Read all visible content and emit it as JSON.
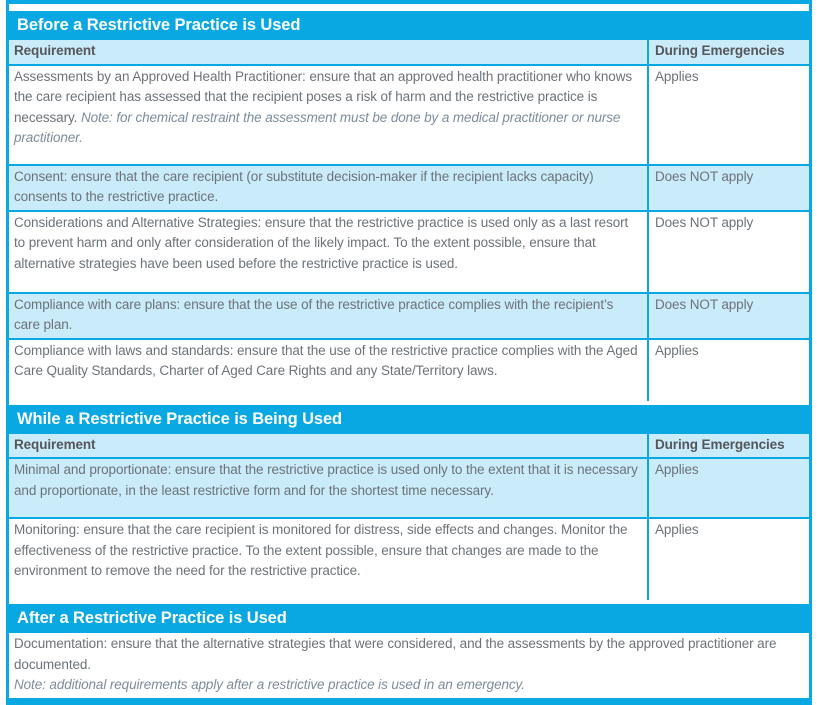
{
  "colors": {
    "accent": "#0AA8E2",
    "row_alt": "#CAEBFA",
    "text": "#6C7378",
    "text_strong": "#55565A",
    "note": "#7D8C9B",
    "header_text": "#FFFFFF"
  },
  "sections": [
    {
      "title": "Before a Restrictive Practice is Used",
      "columns": [
        "Requirement",
        "During Emergencies"
      ],
      "rows": [
        {
          "requirement": "Assessments by an Approved Health Practitioner: ensure that an approved health practitioner who knows the care recipient has assessed that the recipient poses a risk of harm and the restrictive practice is necessary.",
          "note": "Note: for chemical restraint the assessment must be done by a medical practitioner or nurse practitioner.",
          "emergency": "Applies"
        },
        {
          "requirement": "Consent: ensure that the care recipient (or substitute decision-maker if the recipient lacks capacity) consents to the restrictive practice.",
          "emergency": "Does NOT apply"
        },
        {
          "requirement": "Considerations and Alternative Strategies: ensure that the restrictive practice is used only as a last resort to prevent harm and only after consideration of the likely impact. To the extent possible, ensure that alternative strategies have been used before the restrictive practice is used.",
          "emergency": "Does NOT apply"
        },
        {
          "requirement": "Compliance with care plans: ensure that the use of the restrictive practice complies with the recipient’s care plan.",
          "emergency": "Does NOT apply"
        },
        {
          "requirement": "Compliance with laws and standards: ensure that the use of the restrictive practice complies with the Aged Care Quality Standards, Charter of Aged Care Rights and any State/Territory laws.",
          "emergency": "Applies"
        }
      ]
    },
    {
      "title": "While a Restrictive Practice is Being Used",
      "columns": [
        "Requirement",
        "During Emergencies"
      ],
      "rows": [
        {
          "requirement": "Minimal and proportionate: ensure that the restrictive practice is used only to the extent that it is necessary and proportionate, in the least restrictive form and for the shortest time necessary.",
          "emergency": "Applies"
        },
        {
          "requirement": "Monitoring: ensure that the care recipient is monitored for distress, side effects and changes. Monitor the effectiveness of the restrictive practice. To the extent possible, ensure that changes are made to the environment to remove the need for the restrictive practice.",
          "emergency": "Applies"
        }
      ]
    },
    {
      "title": "After a Restrictive Practice is Used",
      "rows": [
        {
          "requirement": "Documentation: ensure that the alternative strategies that were considered, and the assessments by the approved practitioner are documented.",
          "note": "Note: additional requirements apply after a restrictive practice is used in an emergency."
        }
      ]
    }
  ]
}
